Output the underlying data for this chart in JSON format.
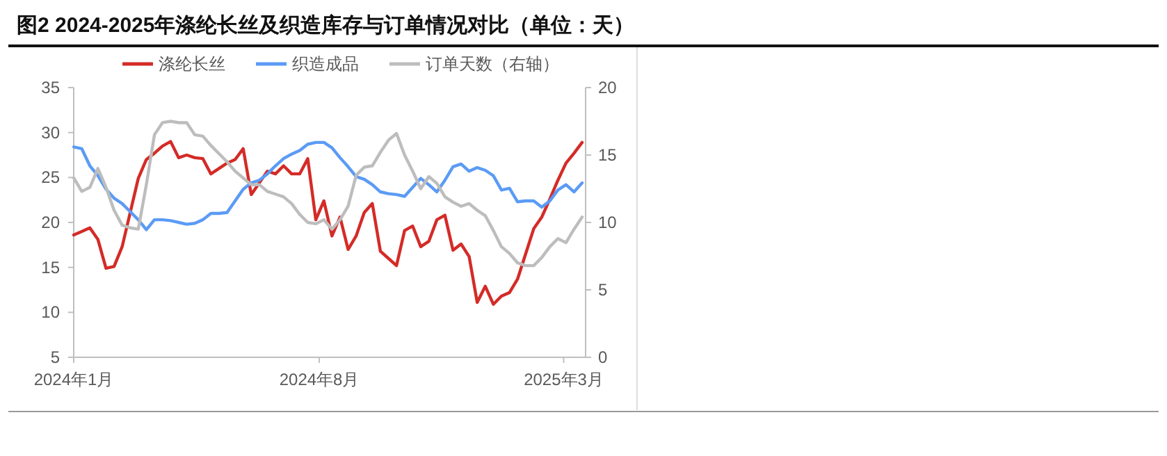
{
  "chart_data": {
    "type": "line",
    "title": "图2 2024-2025年涤纶长丝及织造库存与订单情况对比（单位：天）",
    "x": [
      "2024-01-01",
      "2024-01-08",
      "2024-01-15",
      "2024-01-22",
      "2024-01-29",
      "2024-02-05",
      "2024-02-12",
      "2024-02-19",
      "2024-02-26",
      "2024-03-04",
      "2024-03-11",
      "2024-03-18",
      "2024-03-25",
      "2024-04-01",
      "2024-04-08",
      "2024-04-15",
      "2024-04-22",
      "2024-04-29",
      "2024-05-06",
      "2024-05-13",
      "2024-05-20",
      "2024-05-27",
      "2024-06-03",
      "2024-06-10",
      "2024-06-17",
      "2024-06-24",
      "2024-07-01",
      "2024-07-08",
      "2024-07-15",
      "2024-07-22",
      "2024-07-29",
      "2024-08-05",
      "2024-08-12",
      "2024-08-19",
      "2024-08-26",
      "2024-09-02",
      "2024-09-09",
      "2024-09-16",
      "2024-09-23",
      "2024-09-30",
      "2024-10-07",
      "2024-10-14",
      "2024-10-21",
      "2024-10-28",
      "2024-11-04",
      "2024-11-11",
      "2024-11-18",
      "2024-11-25",
      "2024-12-02",
      "2024-12-09",
      "2024-12-16",
      "2024-12-23",
      "2024-12-30",
      "2025-01-06",
      "2025-01-13",
      "2025-01-20",
      "2025-01-27",
      "2025-02-03",
      "2025-02-10",
      "2025-02-17",
      "2025-02-24",
      "2025-03-03",
      "2025-03-10",
      "2025-03-17"
    ],
    "series": [
      {
        "name": "涤纶长丝",
        "color": "#d42b27",
        "values": [
          18.6,
          19.0,
          19.4,
          18.1,
          14.9,
          15.1,
          17.3,
          21.1,
          24.9,
          27.0,
          27.7,
          28.5,
          29.0,
          27.2,
          27.5,
          27.2,
          27.1,
          25.4,
          26.0,
          26.6,
          27.0,
          28.2,
          23.1,
          24.4,
          25.7,
          25.4,
          26.3,
          25.4,
          25.4,
          27.1,
          20.3,
          22.4,
          18.5,
          20.6,
          17.0,
          18.5,
          21.1,
          22.1,
          16.8,
          16.0,
          15.2,
          19.1,
          19.6,
          17.3,
          17.9,
          20.3,
          20.8,
          16.9,
          17.6,
          16.2,
          11.1,
          12.9,
          10.9,
          11.8,
          12.2,
          13.7,
          16.5,
          19.3,
          20.6,
          22.6,
          24.7,
          26.6,
          27.7,
          28.9
        ]
      },
      {
        "name": "织造成品",
        "color": "#5b9bf5",
        "values": [
          28.4,
          28.2,
          26.3,
          25.2,
          23.7,
          22.7,
          22.1,
          21.2,
          20.3,
          19.2,
          20.3,
          20.3,
          20.2,
          20.0,
          19.8,
          19.9,
          20.3,
          21.0,
          21.0,
          21.1,
          22.4,
          23.7,
          24.4,
          24.7,
          25.4,
          26.3,
          27.1,
          27.6,
          28.0,
          28.7,
          28.9,
          28.9,
          28.3,
          27.2,
          26.2,
          25.1,
          24.8,
          24.2,
          23.4,
          23.2,
          23.1,
          22.9,
          23.9,
          24.9,
          24.2,
          23.4,
          24.7,
          26.2,
          26.5,
          25.7,
          26.1,
          25.8,
          25.2,
          23.6,
          23.8,
          22.3,
          22.4,
          22.4,
          21.7,
          22.4,
          23.6,
          24.2,
          23.4,
          24.4
        ]
      },
      {
        "name": "订单天数（右轴）",
        "color": "#bdbdbd",
        "axis": "y2",
        "values": [
          13.3,
          12.3,
          12.6,
          14.0,
          12.6,
          10.9,
          9.8,
          9.6,
          9.5,
          12.8,
          16.5,
          17.4,
          17.5,
          17.4,
          17.4,
          16.5,
          16.4,
          15.7,
          15.1,
          14.5,
          13.8,
          13.3,
          12.8,
          12.8,
          12.3,
          12.1,
          11.9,
          11.4,
          10.6,
          10.0,
          9.9,
          10.2,
          9.5,
          10.2,
          11.2,
          13.5,
          14.1,
          14.2,
          15.2,
          16.1,
          16.6,
          15.0,
          13.8,
          12.5,
          13.4,
          12.9,
          11.9,
          11.5,
          11.2,
          11.4,
          10.9,
          10.5,
          9.4,
          8.2,
          7.7,
          7.0,
          6.8,
          6.8,
          7.4,
          8.2,
          8.8,
          8.5,
          9.5,
          10.4
        ]
      }
    ],
    "xlim": [
      "2024-01-01",
      "2025-03-20"
    ],
    "xticks": [
      {
        "value": "2024-01-01",
        "label": "2024年1月"
      },
      {
        "value": "2024-08-01",
        "label": "2024年8月"
      },
      {
        "value": "2025-03-01",
        "label": "2025年3月"
      }
    ],
    "ylim": [
      5,
      35
    ],
    "yticks": [
      5,
      10,
      15,
      20,
      25,
      30,
      35
    ],
    "y2lim": [
      0,
      20
    ],
    "y2ticks": [
      0,
      5,
      10,
      15,
      20
    ],
    "legend": "top",
    "grid": false,
    "marker": "none",
    "line_style": "solid"
  }
}
